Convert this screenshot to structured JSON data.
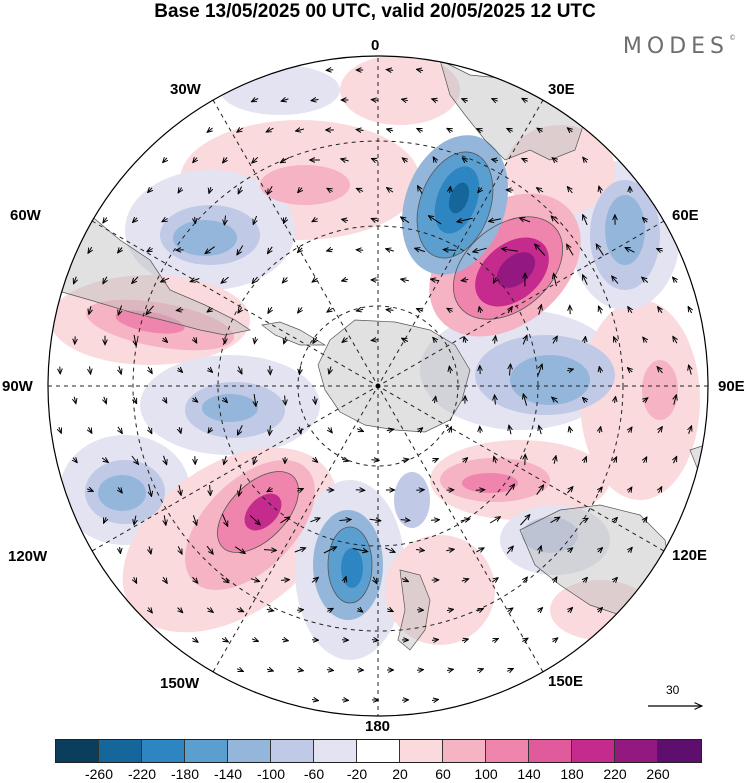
{
  "title": "Base 13/05/2025 00 UTC, valid 20/05/2025 12 UTC",
  "brand": "MODES",
  "brand_mark": "©",
  "longitude_labels": {
    "lon_0": "0",
    "lon_30e": "30E",
    "lon_60e": "60E",
    "lon_90e": "90E",
    "lon_120e": "120E",
    "lon_150e": "150E",
    "lon_180": "180",
    "lon_150w": "150W",
    "lon_120w": "120W",
    "lon_90w": "90W",
    "lon_60w": "60W",
    "lon_30w": "30W"
  },
  "vector_scale_label": "30",
  "colorbar": {
    "colors": [
      "#0b3d5c",
      "#15669a",
      "#2d86c2",
      "#5a9fd0",
      "#93b6da",
      "#c0c9e6",
      "#e3e3f1",
      "#ffffff",
      "#fadadd",
      "#f6b3c3",
      "#ef85ac",
      "#e15b9c",
      "#c42b8c",
      "#93187f",
      "#5e0f6e"
    ],
    "ticks": [
      "-260",
      "-220",
      "-180",
      "-140",
      "-100",
      "-60",
      "-20",
      "20",
      "60",
      "100",
      "140",
      "180",
      "220",
      "260"
    ]
  },
  "colors": {
    "land": "#d8d8d8",
    "grid": "#222222"
  }
}
